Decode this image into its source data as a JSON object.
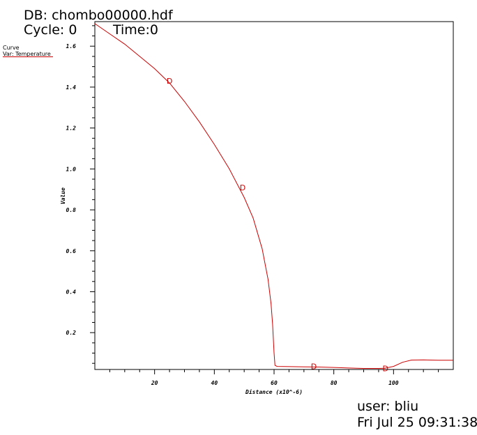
{
  "header": {
    "db": "DB: chombo00000.hdf",
    "cycle": "Cycle: 0",
    "time": "Time:0"
  },
  "legend": {
    "title": "Curve",
    "var": "Var: Temperature",
    "line_color": "#cc0000"
  },
  "footer": {
    "user": "user: bliu",
    "date": "Fri Jul 25 09:31:38"
  },
  "chart_data": {
    "type": "line",
    "title": "",
    "xlabel": "Distance (x10^-6)",
    "ylabel": "Value",
    "xlim": [
      0,
      120
    ],
    "ylim": [
      0.02,
      1.72
    ],
    "xticks": [
      20,
      40,
      60,
      80,
      100
    ],
    "yticks": [
      0.2,
      0.4,
      0.6,
      0.8,
      1.0,
      1.2,
      1.4,
      1.6
    ],
    "ytick_labels": [
      "0.2",
      "0.4",
      "0.6",
      "0.8",
      "1.0",
      "1.2",
      "1.4",
      "1.6"
    ],
    "grid": false,
    "series": [
      {
        "name": "Temperature",
        "color": "#cc0000",
        "x": [
          0,
          5,
          10,
          15,
          20,
          25,
          30,
          35,
          40,
          45,
          50,
          53,
          56,
          58,
          59,
          59.5,
          60,
          60.3,
          61,
          65,
          70,
          75,
          80,
          85,
          90,
          95,
          97,
          100,
          103,
          106,
          110,
          115,
          120
        ],
        "y": [
          1.71,
          1.66,
          1.61,
          1.55,
          1.49,
          1.42,
          1.33,
          1.23,
          1.12,
          1.0,
          0.86,
          0.76,
          0.61,
          0.46,
          0.34,
          0.24,
          0.1,
          0.04,
          0.035,
          0.034,
          0.033,
          0.032,
          0.03,
          0.027,
          0.025,
          0.025,
          0.026,
          0.035,
          0.055,
          0.066,
          0.067,
          0.065,
          0.065
        ]
      }
    ],
    "markers": {
      "label": "D",
      "x": [
        25,
        49.5,
        73.3,
        97.3
      ],
      "y": [
        1.43,
        0.91,
        0.035,
        0.025
      ]
    }
  }
}
